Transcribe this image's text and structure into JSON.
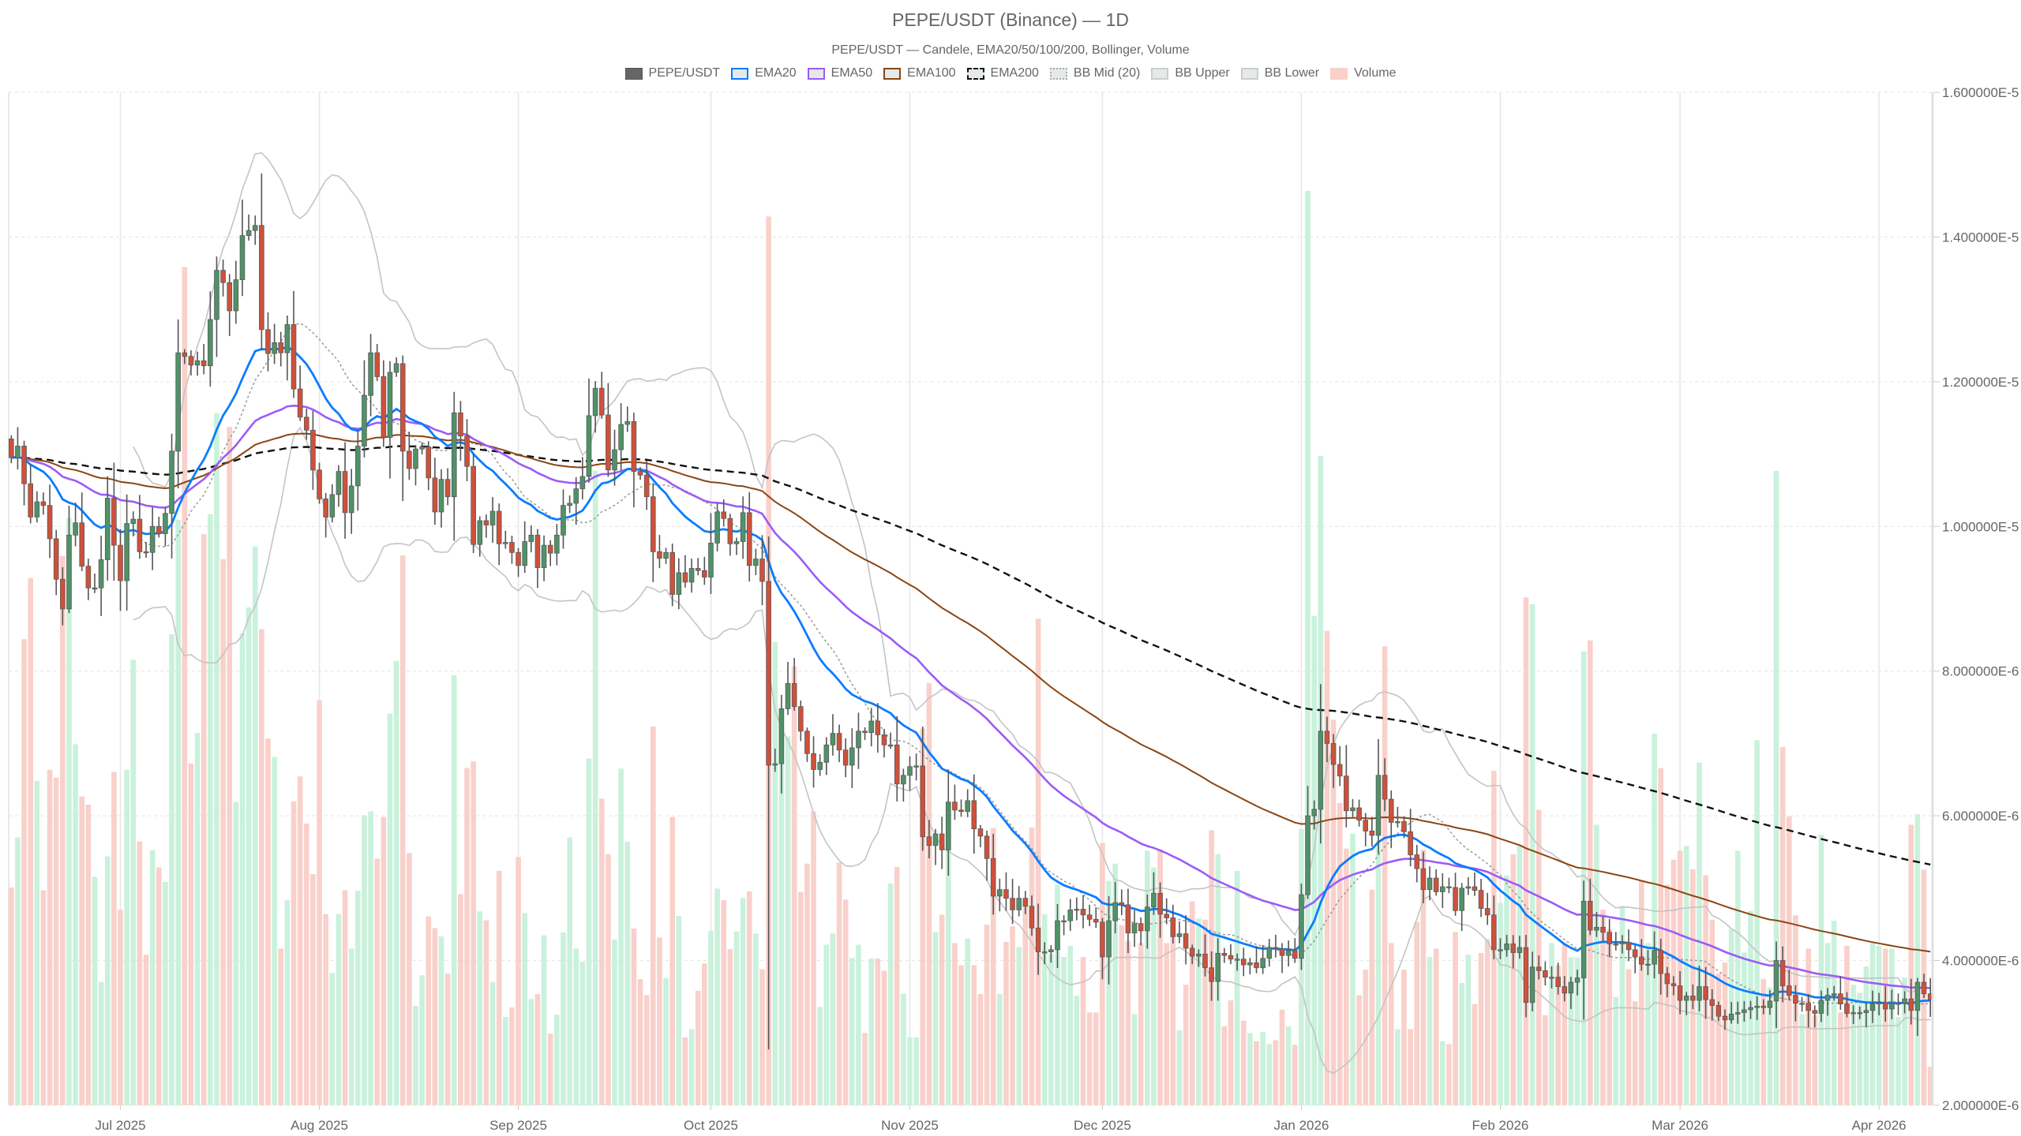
{
  "title": "PEPE/USDT (Binance) — 1D",
  "subtitle": "PEPE/USDT — Candele, EMA20/50/100/200, Bollinger, Volume",
  "legend": [
    {
      "label": "PEPE/USDT",
      "style": "candle"
    },
    {
      "label": "EMA20",
      "style": "ema20"
    },
    {
      "label": "EMA50",
      "style": "ema50"
    },
    {
      "label": "EMA100",
      "style": "ema100"
    },
    {
      "label": "EMA200",
      "style": "ema200"
    },
    {
      "label": "BB Mid (20)",
      "style": "bbmid"
    },
    {
      "label": "BB Upper",
      "style": "bbupper"
    },
    {
      "label": "BB Lower",
      "style": "bblower"
    },
    {
      "label": "Volume",
      "style": "volume"
    }
  ],
  "colors": {
    "up": "#4f9268",
    "down": "#d0503a",
    "wick": "#555555",
    "vol_up": "#c9f1dc",
    "vol_down": "#f9d0ca",
    "ema20": "#0a7cff",
    "ema50": "#9b5cf6",
    "ema100": "#8b4513",
    "ema200": "#111111",
    "bb": "#c4c4c4",
    "bbmid": "#9a9a9a",
    "grid": "#e6e6e6"
  },
  "chart_data": {
    "type": "candlestick",
    "title": "PEPE/USDT (Binance) — 1D",
    "price_unit": 1e-06,
    "ylim": [
      2,
      16
    ],
    "y_tick_values": [
      2,
      4,
      6,
      8,
      10,
      12,
      14,
      16
    ],
    "y_tick_labels": [
      "2.000000E-6",
      "4.000000E-6",
      "6.000000E-6",
      "8.000000E-6",
      "1.000000E-5",
      "1.200000E-5",
      "1.400000E-5",
      "1.600000E-5"
    ],
    "x_ticks": [
      {
        "label": "Jul 2025",
        "index": 17
      },
      {
        "label": "Aug 2025",
        "index": 48
      },
      {
        "label": "Sep 2025",
        "index": 79
      },
      {
        "label": "Oct 2025",
        "index": 109
      },
      {
        "label": "Nov 2025",
        "index": 140
      },
      {
        "label": "Dec 2025",
        "index": 170
      },
      {
        "label": "Jan 2026",
        "index": 201
      },
      {
        "label": "Feb 2026",
        "index": 232
      },
      {
        "label": "Mar 2026",
        "index": 260
      },
      {
        "label": "Apr 2026",
        "index": 291
      }
    ],
    "first_open": 11.21,
    "low_overrides": {
      "118": 2.77
    },
    "close": [
      10.95,
      11.11,
      10.59,
      10.13,
      10.34,
      10.29,
      9.83,
      9.27,
      8.86,
      9.88,
      10.05,
      9.45,
      9.15,
      9.15,
      9.54,
      10.39,
      9.74,
      9.25,
      10.04,
      10.1,
      9.65,
      9.64,
      10.0,
      9.9,
      10.18,
      11.04,
      12.4,
      12.35,
      12.23,
      12.29,
      12.22,
      12.86,
      13.54,
      13.37,
      12.98,
      13.41,
      14.02,
      14.09,
      14.16,
      12.72,
      12.39,
      12.54,
      12.4,
      12.79,
      11.9,
      11.51,
      11.33,
      10.78,
      10.38,
      10.13,
      10.44,
      10.76,
      10.19,
      10.56,
      11.11,
      11.81,
      12.4,
      12.07,
      11.23,
      12.13,
      12.25,
      11.04,
      10.8,
      11.07,
      11.1,
      10.67,
      10.2,
      10.65,
      10.41,
      11.57,
      11.25,
      10.83,
      9.75,
      10.08,
      10.02,
      10.21,
      9.76,
      9.78,
      9.64,
      9.46,
      9.79,
      9.88,
      9.43,
      9.74,
      9.63,
      9.88,
      10.29,
      10.32,
      10.52,
      10.69,
      11.53,
      11.91,
      11.54,
      10.78,
      11.06,
      11.41,
      11.45,
      10.76,
      10.71,
      10.41,
      9.65,
      9.56,
      9.64,
      9.06,
      9.36,
      9.23,
      9.42,
      9.39,
      9.3,
      9.77,
      10.2,
      10.11,
      9.76,
      9.79,
      10.19,
      9.46,
      9.55,
      9.24,
      6.7,
      6.72,
      7.48,
      7.83,
      7.51,
      7.17,
      6.86,
      6.64,
      6.74,
      6.98,
      7.14,
      6.91,
      6.7,
      6.94,
      7.17,
      7.15,
      7.31,
      7.12,
      6.98,
      6.98,
      6.44,
      6.56,
      6.68,
      6.69,
      5.71,
      5.59,
      5.75,
      5.53,
      6.19,
      6.08,
      6.06,
      6.21,
      5.82,
      5.72,
      5.41,
      4.89,
      4.98,
      4.86,
      4.7,
      4.86,
      4.75,
      4.45,
      4.12,
      4.12,
      4.15,
      4.55,
      4.55,
      4.7,
      4.71,
      4.63,
      4.57,
      4.53,
      4.05,
      4.55,
      4.8,
      4.77,
      4.38,
      4.51,
      4.41,
      4.74,
      4.93,
      4.64,
      4.59,
      4.33,
      4.37,
      4.17,
      4.06,
      4.09,
      3.9,
      3.71,
      4.1,
      4.07,
      4.02,
      4.02,
      3.94,
      3.97,
      3.9,
      4.03,
      4.18,
      4.16,
      4.07,
      4.14,
      4.03,
      4.91,
      6.0,
      6.09,
      7.17,
      7.0,
      6.71,
      6.55,
      6.07,
      6.11,
      5.94,
      5.79,
      5.73,
      6.56,
      6.23,
      5.91,
      5.92,
      5.78,
      5.46,
      5.27,
      4.98,
      5.14,
      4.95,
      5.02,
      5.01,
      4.69,
      5.0,
      5.02,
      4.97,
      4.72,
      4.63,
      4.15,
      4.15,
      4.23,
      4.11,
      4.18,
      3.42,
      3.91,
      3.86,
      3.77,
      3.77,
      3.64,
      3.55,
      3.7,
      3.76,
      4.82,
      4.42,
      4.46,
      4.39,
      4.23,
      4.23,
      4.25,
      4.15,
      4.05,
      3.95,
      3.95,
      4.14,
      3.82,
      3.68,
      3.65,
      3.45,
      3.51,
      3.45,
      3.64,
      3.46,
      3.38,
      3.23,
      3.18,
      3.26,
      3.28,
      3.32,
      3.35,
      3.37,
      3.35,
      3.44,
      4.0,
      3.65,
      3.52,
      3.41,
      3.41,
      3.31,
      3.27,
      3.45,
      3.52,
      3.54,
      3.4,
      3.27,
      3.28,
      3.28,
      3.31,
      3.4,
      3.42,
      3.33,
      3.41,
      3.41,
      3.47,
      3.31,
      3.7,
      3.54,
      3.46
    ],
    "volume_relative": [
      392,
      482,
      839,
      949,
      584,
      387,
      604,
      590,
      989,
      1057,
      650,
      556,
      541,
      411,
      222,
      448,
      600,
      352,
      604,
      802,
      475,
      271,
      459,
      428,
      402,
      848,
      1054,
      1509,
      615,
      670,
      1028,
      1064,
      1246,
      983,
      1221,
      546,
      850,
      896,
      1006,
      857,
      660,
      627,
      282,
      369,
      547,
      592,
      507,
      416,
      729,
      344,
      238,
      344,
      387,
      282,
      386,
      522,
      529,
      444,
      519,
      705,
      800,
      990,
      454,
      179,
      234,
      340,
      319,
      304,
      237,
      774,
      380,
      607,
      619,
      349,
      333,
      222,
      422,
      159,
      176,
      447,
      346,
      191,
      200,
      306,
      129,
      163,
      311,
      482,
      282,
      258,
      624,
      1142,
      552,
      452,
      298,
      606,
      474,
      318,
      227,
      198,
      682,
      302,
      229,
      519,
      341,
      122,
      137,
      206,
      255,
      314,
      390,
      369,
      281,
      313,
      373,
      385,
      309,
      245,
      1600,
      834,
      664,
      664,
      790,
      384,
      435,
      529,
      177,
      289,
      309,
      437,
      370,
      265,
      289,
      130,
      264,
      264,
      242,
      399,
      429,
      201,
      122,
      122,
      678,
      760,
      312,
      343,
      472,
      292,
      252,
      300,
      252,
      200,
      325,
      499,
      200,
      294,
      322,
      285,
      367,
      500,
      876,
      344,
      272,
      397,
      267,
      287,
      197,
      267,
      167,
      167,
      472,
      404,
      435,
      324,
      296,
      164,
      292,
      458,
      428,
      461,
      292,
      305,
      135,
      217,
      367,
      336,
      334,
      495,
      452,
      142,
      189,
      422,
      152,
      130,
      115,
      132,
      110,
      117,
      172,
      142,
      109,
      497,
      1646,
      881,
      1169,
      854,
      694,
      544,
      462,
      489,
      198,
      244,
      388,
      477,
      826,
      292,
      137,
      244,
      137,
      330,
      460,
      267,
      282,
      115,
      110,
      312,
      220,
      271,
      182,
      274,
      299,
      602,
      364,
      414,
      452,
      469,
      914,
      902,
      532,
      162,
      292,
      252,
      292,
      266,
      266,
      817,
      837,
      505,
      352,
      317,
      195,
      359,
      245,
      187,
      405,
      292,
      669,
      607,
      397,
      442,
      458,
      467,
      425,
      617,
      414,
      334,
      237,
      257,
      317,
      458,
      275,
      350,
      657,
      227,
      212,
      1142,
      645,
      520,
      342,
      164,
      282,
      162,
      487,
      292,
      332,
      167,
      287,
      217,
      202,
      250,
      292,
      287,
      282,
      282,
      159,
      230,
      505,
      524,
      424,
      69
    ],
    "indicators": {
      "ema_periods": [
        20,
        50,
        100,
        200
      ],
      "bollinger": {
        "period": 20,
        "stddev": 2
      }
    },
    "grid": true,
    "legend_position": "top-center"
  }
}
